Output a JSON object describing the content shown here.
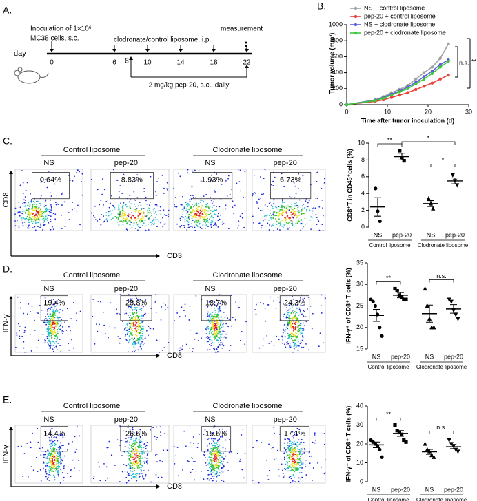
{
  "panel_labels": [
    "A.",
    "B.",
    "C.",
    "D.",
    "E."
  ],
  "timeline": {
    "inoculation": [
      "Inoculation of 1×10⁶",
      "MC38 cells, s.c."
    ],
    "day_label": "day",
    "days": [
      0,
      6,
      10,
      14,
      18,
      22
    ],
    "liposome_label": "clodronate/control liposome, i.p.",
    "measurement": "measurement",
    "pep_start": 8,
    "pep_label": "2 mg/kg pep-20, s.c., daily"
  },
  "flow": [
    {
      "groups": [
        "Control liposome",
        "Clodronate liposome"
      ],
      "conditions": [
        "NS",
        "pep-20",
        "NS",
        "pep-20"
      ],
      "percents": [
        "0.64%",
        "8.83%",
        "1.93%",
        "6.73%"
      ],
      "y_label": "CD8",
      "x_label": "CD3"
    },
    {
      "groups": [
        "Control liposome",
        "Clodronate liposome"
      ],
      "conditions": [
        "NS",
        "pep-20",
        "NS",
        "pep-20"
      ],
      "percents": [
        "19.4%",
        "28.8%",
        "18.7%",
        "24.3%"
      ],
      "y_label": "IFN-γ",
      "x_label": "CD8"
    },
    {
      "groups": [
        "Control liposome",
        "Clodronate liposome"
      ],
      "conditions": [
        "NS",
        "pep-20",
        "NS",
        "pep-20"
      ],
      "percents": [
        "14.4%",
        "26.6%",
        "15.6%",
        "17.1%"
      ],
      "y_label": "IFN-γ",
      "x_label": "CD8"
    }
  ],
  "chart_data": [
    {
      "type": "line",
      "x_label": "Time after tumor inoculation (d)",
      "y_label": "Tumor volume (mm³)",
      "x": [
        0,
        7,
        9,
        11,
        13,
        15,
        17,
        19,
        21,
        23,
        25
      ],
      "xlim": [
        0,
        30
      ],
      "xticks": [
        0,
        10,
        20,
        30
      ],
      "ylim": [
        0,
        1000
      ],
      "yticks": [
        0,
        200,
        400,
        600,
        800,
        1000
      ],
      "series": [
        {
          "name": "NS + control liposome",
          "color": "#a0a0a0",
          "values": [
            0,
            60,
            100,
            150,
            190,
            240,
            320,
            400,
            470,
            580,
            760
          ]
        },
        {
          "name": "pep-20 + control liposome",
          "color": "#e8413c",
          "values": [
            0,
            40,
            60,
            90,
            120,
            150,
            190,
            230,
            270,
            320,
            370
          ]
        },
        {
          "name": "NS + clodronate liposome",
          "color": "#5b5bdc",
          "values": [
            0,
            55,
            90,
            130,
            170,
            220,
            280,
            350,
            420,
            500,
            560
          ]
        },
        {
          "name": "pep-20 + clodronate liposome",
          "color": "#3cc83c",
          "values": [
            0,
            50,
            80,
            120,
            160,
            200,
            260,
            320,
            390,
            470,
            540
          ]
        }
      ],
      "annotations": [
        "n.s.",
        "**"
      ]
    },
    {
      "type": "dot",
      "y_label": "CD8⁺T in CD45⁺cells (%)",
      "categories": [
        "NS",
        "pep-20",
        "NS",
        "pep-20"
      ],
      "groups": [
        "Control liposome",
        "Clodronate liposome"
      ],
      "ylim": [
        0,
        10
      ],
      "yticks": [
        0,
        2,
        4,
        6,
        8,
        10
      ],
      "markers": [
        "circle",
        "square",
        "triangle",
        "triangle-down"
      ],
      "points": [
        [
          4.6,
          1.9,
          0.7
        ],
        [
          9.1,
          8.3,
          7.9
        ],
        [
          3.4,
          2.8,
          2.2
        ],
        [
          6.2,
          5.5,
          5.0
        ]
      ],
      "means": [
        2.4,
        8.4,
        2.8,
        5.5
      ],
      "errors": [
        1.1,
        0.4,
        0.35,
        0.35
      ],
      "annotations": [
        {
          "text": "**",
          "between": [
            0,
            1
          ]
        },
        {
          "text": "*",
          "between": [
            1,
            3
          ]
        },
        {
          "text": "*",
          "between": [
            2,
            3
          ]
        }
      ]
    },
    {
      "type": "dot",
      "y_label": "IFN-γ⁺ of CD8⁺ T cells (%)",
      "categories": [
        "NS",
        "pep-20",
        "NS",
        "pep-20"
      ],
      "groups": [
        "Control liposome",
        "Clodronate liposome"
      ],
      "ylim": [
        15,
        35
      ],
      "yticks": [
        15,
        20,
        25,
        30,
        35
      ],
      "markers": [
        "circle",
        "square",
        "triangle",
        "triangle-down"
      ],
      "points": [
        [
          26.5,
          26,
          25,
          23,
          20,
          18
        ],
        [
          29,
          28.5,
          27.5,
          27,
          26.5,
          26.5
        ],
        [
          29,
          25,
          22,
          20,
          20
        ],
        [
          26.5,
          26,
          24,
          23,
          22
        ]
      ],
      "means": [
        22.8,
        27.5,
        23.2,
        24.3
      ],
      "errors": [
        1.4,
        0.6,
        2,
        1
      ],
      "annotations": [
        {
          "text": "**",
          "between": [
            0,
            1
          ]
        },
        {
          "text": "n.s.",
          "between": [
            2,
            3
          ]
        }
      ]
    },
    {
      "type": "dot",
      "y_label": "IFN-γ⁺ of CD8⁺ T cells (%)",
      "categories": [
        "NS",
        "pep-20",
        "NS",
        "pep-20"
      ],
      "groups": [
        "Control liposome",
        "Clodronate liposome"
      ],
      "ylim": [
        0,
        40
      ],
      "yticks": [
        0,
        10,
        20,
        30,
        40
      ],
      "markers": [
        "circle",
        "square",
        "triangle",
        "triangle-down"
      ],
      "points": [
        [
          22,
          21,
          20,
          19,
          17,
          13
        ],
        [
          30,
          27,
          26,
          25,
          22,
          21
        ],
        [
          20,
          17,
          16,
          14,
          13
        ],
        [
          22,
          20,
          19,
          17,
          16
        ]
      ],
      "means": [
        19.5,
        25.5,
        15.8,
        18.5
      ],
      "errors": [
        1.5,
        1.5,
        1.3,
        1
      ],
      "annotations": [
        {
          "text": "**",
          "between": [
            0,
            1
          ]
        },
        {
          "text": "n.s.",
          "between": [
            2,
            3
          ]
        }
      ]
    }
  ]
}
